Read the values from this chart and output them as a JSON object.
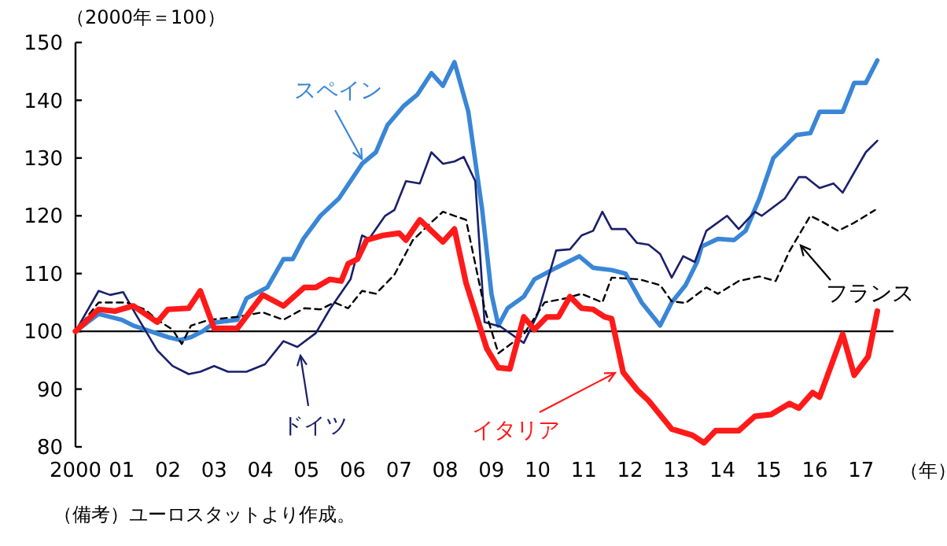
{
  "chart_data": {
    "type": "line",
    "ylabel": "（2000年＝100）",
    "xlabel": "（年）",
    "annotations": [
      "（備考）ユーロスタットより作成。"
    ],
    "xlim": [
      2000,
      2017.7
    ],
    "ylim": [
      80,
      150
    ],
    "yticks": [
      80,
      90,
      100,
      110,
      120,
      130,
      140,
      150
    ],
    "xticks": [
      {
        "value": 2000,
        "label": "2000"
      },
      {
        "value": 2001,
        "label": "01"
      },
      {
        "value": 2002,
        "label": "02"
      },
      {
        "value": 2003,
        "label": "03"
      },
      {
        "value": 2004,
        "label": "04"
      },
      {
        "value": 2005,
        "label": "05"
      },
      {
        "value": 2006,
        "label": "06"
      },
      {
        "value": 2007,
        "label": "07"
      },
      {
        "value": 2008,
        "label": "08"
      },
      {
        "value": 2009,
        "label": "09"
      },
      {
        "value": 2010,
        "label": "10"
      },
      {
        "value": 2011,
        "label": "11"
      },
      {
        "value": 2012,
        "label": "12"
      },
      {
        "value": 2013,
        "label": "13"
      },
      {
        "value": 2014,
        "label": "14"
      },
      {
        "value": 2015,
        "label": "15"
      },
      {
        "value": 2016,
        "label": "16"
      },
      {
        "value": 2017,
        "label": "17"
      }
    ],
    "ref_lines": [
      {
        "axis": "y",
        "value": 100,
        "label": null,
        "color": "#000000"
      }
    ],
    "grid": false,
    "legend": "bottom right",
    "marker": "none",
    "series": [
      {
        "name": "スペイン",
        "color": "#3a86d6",
        "x": [
          2000,
          2000.5,
          2001,
          2001.25,
          2002,
          2002.25,
          2002.5,
          2002.75,
          2003,
          2003.5,
          2003.7,
          2004.15,
          2004.5,
          2004.7,
          2004.93,
          2005.3,
          2005.7,
          2006.2,
          2006.5,
          2006.75,
          2007.1,
          2007.4,
          2007.7,
          2007.95,
          2008.2,
          2008.5,
          2008.8,
          2009.0,
          2009.15,
          2009.35,
          2009.7,
          2009.93,
          2010.4,
          2010.9,
          2011.2,
          2011.6,
          2011.9,
          2012.25,
          2012.65,
          2012.9,
          2013.2,
          2013.45,
          2013.55,
          2013.9,
          2014.25,
          2014.5,
          2014.8,
          2015.1,
          2015.6,
          2015.9,
          2016.1,
          2016.6,
          2016.85,
          2017.1,
          2017.35
        ],
        "values": [
          100,
          103,
          102,
          101,
          99,
          98.5,
          99,
          100,
          101.5,
          102,
          105.7,
          107.6,
          112.5,
          112.5,
          116,
          120,
          123,
          129,
          131,
          135.7,
          139,
          141,
          144.7,
          142.5,
          146.6,
          138,
          121,
          106.5,
          101,
          104,
          106,
          109,
          111,
          113,
          111,
          110.6,
          110,
          105,
          101,
          105,
          108,
          112,
          114.7,
          116,
          115.8,
          117.4,
          123,
          130,
          134,
          134.3,
          138,
          138,
          143,
          143,
          146.9
        ]
      },
      {
        "name": "ドイツ",
        "color": "#1a1f6b",
        "x": [
          2000,
          2000.5,
          2000.75,
          2001.03,
          2001.3,
          2001.77,
          2002.1,
          2002.45,
          2002.7,
          2003.0,
          2003.3,
          2003.7,
          2004.1,
          2004.5,
          2004.8,
          2005.2,
          2005.5,
          2005.95,
          2006.2,
          2006.35,
          2006.7,
          2006.9,
          2007.15,
          2007.45,
          2007.7,
          2007.95,
          2008.2,
          2008.4,
          2008.65,
          2008.85,
          2009.2,
          2009.7,
          2010.0,
          2010.4,
          2010.7,
          2010.95,
          2011.2,
          2011.4,
          2011.6,
          2011.9,
          2012.15,
          2012.4,
          2012.65,
          2012.9,
          2013.15,
          2013.4,
          2013.65,
          2014.1,
          2014.35,
          2014.7,
          2014.85,
          2015.35,
          2015.65,
          2015.8,
          2016.1,
          2016.4,
          2016.6,
          2017.1,
          2017.35
        ],
        "values": [
          100,
          107,
          106.3,
          106.8,
          103,
          96.7,
          94,
          92.6,
          93,
          94,
          93,
          93,
          94.3,
          98.3,
          97.3,
          99.7,
          103.8,
          109,
          116.6,
          116,
          120,
          121,
          126,
          125.6,
          131,
          129,
          129.4,
          130.2,
          126,
          101.6,
          100.8,
          98,
          103,
          114,
          114.2,
          116.6,
          117.4,
          120.7,
          117.7,
          117.7,
          115.3,
          115,
          113.4,
          109.3,
          113,
          112,
          117.4,
          120,
          117.7,
          120.7,
          120,
          123,
          126.7,
          126.7,
          124.8,
          125.6,
          124,
          131,
          133
        ]
      },
      {
        "name": "フランス",
        "color": "#000000",
        "line_style": "dashed",
        "x": [
          2000,
          2000.5,
          2001.1,
          2001.5,
          2001.77,
          2002.1,
          2002.3,
          2002.5,
          2002.9,
          2003.5,
          2004.05,
          2004.5,
          2004.95,
          2005.3,
          2005.6,
          2005.9,
          2006.2,
          2006.5,
          2006.9,
          2007.3,
          2007.65,
          2007.95,
          2008.45,
          2008.85,
          2009.15,
          2009.7,
          2010.15,
          2010.6,
          2010.95,
          2011.4,
          2011.6,
          2012.2,
          2012.65,
          2012.9,
          2013.2,
          2013.65,
          2013.9,
          2014.35,
          2014.8,
          2015.15,
          2015.45,
          2015.9,
          2016.15,
          2016.5,
          2016.85,
          2017.3
        ],
        "values": [
          100,
          105,
          105,
          103.8,
          102,
          100.3,
          97.8,
          101,
          102,
          102.5,
          103.3,
          102,
          104,
          103.8,
          105,
          104,
          107,
          106.5,
          109.8,
          115.8,
          118.5,
          120.7,
          119.3,
          104,
          96.2,
          99.5,
          105,
          105.7,
          106.5,
          105,
          109.3,
          109,
          108,
          105.2,
          104.9,
          107.6,
          106.5,
          108.7,
          109.5,
          108.7,
          113.9,
          120,
          119,
          117.4,
          118.8,
          121
        ]
      },
      {
        "name": "イタリア",
        "color": "#ff1a1a",
        "x": [
          2000,
          2000.5,
          2000.85,
          2001.25,
          2001.77,
          2002.0,
          2002.45,
          2002.7,
          2003.0,
          2003.5,
          2004.05,
          2004.5,
          2004.95,
          2005.2,
          2005.5,
          2005.75,
          2005.9,
          2006.1,
          2006.3,
          2006.65,
          2007.0,
          2007.15,
          2007.45,
          2007.95,
          2008.2,
          2008.45,
          2008.9,
          2009.15,
          2009.4,
          2009.7,
          2009.93,
          2010.2,
          2010.45,
          2010.7,
          2010.95,
          2011.2,
          2011.45,
          2011.6,
          2011.85,
          2012.15,
          2012.4,
          2012.9,
          2013.35,
          2013.6,
          2013.85,
          2014.35,
          2014.7,
          2015.05,
          2015.45,
          2015.65,
          2015.95,
          2016.1,
          2016.6,
          2016.85,
          2017.15,
          2017.35
        ],
        "values": [
          100,
          103.8,
          103.5,
          104.4,
          101.6,
          103.8,
          104,
          107,
          100.5,
          100.5,
          106.3,
          104.4,
          107.6,
          107.6,
          109,
          108.7,
          111.7,
          112.5,
          115.8,
          116.6,
          117,
          115.8,
          119.3,
          115.5,
          117.7,
          108.4,
          97,
          93.7,
          93.5,
          102.5,
          100.3,
          102.5,
          102.5,
          106,
          104,
          103.8,
          102.5,
          102.2,
          92.9,
          89.9,
          88,
          83.1,
          82,
          80.7,
          82.8,
          82.8,
          85.3,
          85.6,
          87.5,
          86.7,
          89.4,
          88.6,
          99.5,
          92.4,
          95.6,
          103.5
        ]
      }
    ]
  }
}
